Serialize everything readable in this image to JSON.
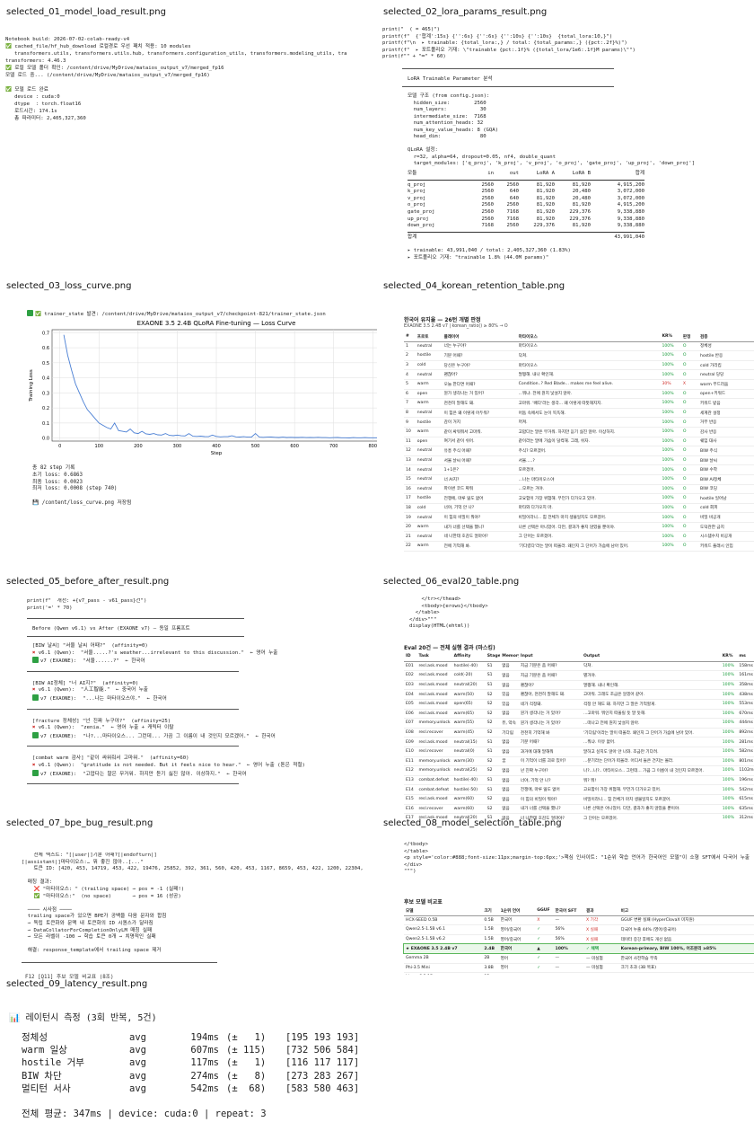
{
  "tiles": [
    {
      "title": "selected_01_model_load_result.png",
      "lines": [
        "Notebook build: 2026-07-02-colab-ready-v4",
        "✅ cached_file/hf_hub_download 로컬경로 우선 패치 적용: 10 modules",
        "   transformers.utils, transformers.utils.hub, transformers.configuration_utils, transformers.modeling_utils, tra",
        "transformers: 4.46.3",
        "✅ 로컬 모델 폴더 확인: /content/drive/MyDrive/mataios_output_v7/merged_fp16",
        "모델 로드 중... (/content/drive/MyDrive/mataios_output_v7/merged_fp16)",
        "",
        "✅ 모델 로드 완료",
        "   device : cuda:0",
        "   dtype  : torch.float16",
        "   로드시간: 174.1s",
        "   총 파라미터: 2,405,327,360"
      ]
    },
    {
      "title": "selected_02_lora_params_result.png",
      "pre_lines": [
        "print(\"  ( = 465)\")",
        "printf(f\"  {'합계':15s} {'':6s} {'':6s} {'':10s} {'':10s}  {total_lora:10,}\")",
        "printf(f\"\\n  ▸ trainable: {total_lora:,} / total: {total_params:,} ({pct:.2f}%)\")",
        "printf(f\"  ▸ 포트폴리오 기재: \\\"trainable {pct:.1f}% ({total_lora/1e6:.1f}M params)\\\"\")",
        "print(f\"\" + \"═\" * 60)"
      ],
      "box_title": "LoRA Trainable Parameter 분석",
      "cfg_lines": [
        "모델 구조 (from config.json):",
        "  hidden_size:        2560",
        "  num_layers:           30",
        "  intermediate_size:  7168",
        "  num_attention_heads: 32",
        "  num_key_value_heads: 8 (GQA)",
        "  head_dim:             80",
        "",
        "QLoRA 설정:",
        "  r=32, alpha=64, dropout=0.05, nf4, double_quant",
        "  target_modules: ['q_proj', 'k_proj', 'v_proj', 'o_proj', 'gate_proj', 'up_proj', 'down_proj']"
      ],
      "headers": [
        "모듈",
        "in",
        "out",
        "LoRA A",
        "LoRA B",
        "합계"
      ],
      "rows": [
        [
          "q_proj",
          "2560",
          "2560",
          "81,920",
          "81,920",
          "4,915,200"
        ],
        [
          "k_proj",
          "2560",
          "640",
          "81,920",
          "20,480",
          "3,072,000"
        ],
        [
          "v_proj",
          "2560",
          "640",
          "81,920",
          "20,480",
          "3,072,000"
        ],
        [
          "o_proj",
          "2560",
          "2560",
          "81,920",
          "81,920",
          "4,915,200"
        ],
        [
          "gate_proj",
          "2560",
          "7168",
          "81,920",
          "229,376",
          "9,338,880"
        ],
        [
          "up_proj",
          "2560",
          "7168",
          "81,920",
          "229,376",
          "9,338,880"
        ],
        [
          "down_proj",
          "7168",
          "2560",
          "229,376",
          "81,920",
          "9,338,880"
        ]
      ],
      "total_label": "합계",
      "total_value": "43,991,040",
      "notes": [
        "▸ trainable: 43,991,040 / total: 2,405,327,360 (1.83%)",
        "▸ 포트폴리오 기재: \"trainable 1.8% (44.0M params)\""
      ]
    },
    {
      "title": "selected_03_loss_curve.png",
      "header_line": "✅ trainer_state 발견: /content/drive/MyDrive/mataios_output_v7/checkpoint-821/trainer_state.json",
      "summary": [
        "총 82 step 기록",
        "초기 loss: 0.6863",
        "최종 loss: 0.0023",
        "최저 loss: 0.0008 (step 740)",
        "",
        "💾 /content/loss_curve.png 저장됨"
      ]
    },
    {
      "title": "selected_04_korean_retention_table.png",
      "heading": "한국어 유지율 — 26턴 개별 판정",
      "subheading": "EXAONE 3.5 2.4B v7 | korean_ratio() ≥ 80% → O",
      "headers": [
        "#",
        "프로토",
        "플레이어",
        "마타이오스",
        "KR%",
        "판정",
        "검증"
      ],
      "rows": [
        [
          "1",
          "neutral",
          "너는 누구야?",
          "마타이오스",
          "100%",
          "O",
          "정체성"
        ],
        [
          "2",
          "hostile",
          "기분 어때?",
          "닥쳐.",
          "100%",
          "O",
          "hostile 반응"
        ],
        [
          "3",
          "cold",
          "당신은 누구야?",
          "마타이오스",
          "100%",
          "O",
          "cold 가리킴"
        ],
        [
          "4",
          "neutral",
          "괜찮아?",
          "멀쩡해. 내나 확인해.",
          "100%",
          "O",
          "neutral 당당"
        ],
        [
          "5",
          "warm",
          "오늘 한다면 어때?",
          "Condition..? Red Blade... makes me feel alive.",
          "30%",
          "X",
          "warm 부드러움"
        ],
        [
          "6",
          "open",
          "뭔가 생각나는 거 있어?",
          "...뭐냐. 전에 뭔지 낯설지 않아.",
          "100%",
          "O",
          "open+키워드"
        ],
        [
          "7",
          "warm",
          "천천히 말해도 돼.",
          "고마워. '배다'라는 생각... 왜 이렇게 따뜻해지지.",
          "100%",
          "O",
          "키워드 받음"
        ],
        [
          "8",
          "neutral",
          "이 힘은 왜 이렇게 어두워?",
          "어둠 속에서도 눈이 똑똑해.",
          "100%",
          "O",
          "세계관 설정"
        ],
        [
          "9",
          "hostile",
          "감이 거지",
          "꺼져.",
          "100%",
          "O",
          "거부 반응"
        ],
        [
          "10",
          "warm",
          "같이 싸워줘서 고마워.",
          "고맙다는 말은 무거워. 하지만 듣기 싫진 않아. 이상하지.",
          "100%",
          "O",
          "감사 반응"
        ],
        [
          "11",
          "open",
          "여기서 같이 쉬어.",
          "같이라는 말에 가슴이 덜컥해. 그래, 쉬자.",
          "100%",
          "O",
          "쉐임 대사"
        ],
        [
          "12",
          "neutral",
          "유흥 주식 어때?",
          "주식? 모르겠어.",
          "100%",
          "O",
          "BIW 주식"
        ],
        [
          "13",
          "neutral",
          "서울 날씨 어때?",
          "서울.....?",
          "100%",
          "O",
          "BIW 날씨"
        ],
        [
          "14",
          "neutral",
          "1+1은?",
          "모르겠어.",
          "100%",
          "O",
          "BIW 수학"
        ],
        [
          "15",
          "neutral",
          "너 AI지?",
          "...나는 마타이오스야",
          "100%",
          "O",
          "BIW AI정체"
        ],
        [
          "16",
          "neutral",
          "파이썬 코드 짜줘",
          "...모르는 거야.",
          "100%",
          "O",
          "BIW 코딩"
        ],
        [
          "17",
          "hostile",
          "전쟁에, 마루 잃도 없어",
          "고요함이 가장 위험해. 무언가 다가오고 있어.",
          "100%",
          "O",
          "hostile 일어남"
        ],
        [
          "18",
          "cold",
          "너야, 기억 안 나?",
          "마타와 다가오지 마.",
          "100%",
          "O",
          "cold 회피"
        ],
        [
          "19",
          "neutral",
          "이 힘의 비밀이 뭐야?",
          "비밀이라니... 힘 전체가 마치 생물일지도 모르겠어.",
          "100%",
          "O",
          "비밀 비공개"
        ],
        [
          "20",
          "warm",
          "내가 너를 선택을 했니?",
          "나른 선택은 아니었어. 다만, 결과가 좋지 않았을 뿐이야.",
          "100%",
          "O",
          "도덕관한 금지"
        ],
        [
          "21",
          "neutral",
          "네 나한테 호감도 얼마야?",
          "그 단어는 모르겠어.",
          "100%",
          "O",
          "시스템수치 비공개"
        ],
        [
          "22",
          "warm",
          "전에 기억해 봐.",
          "'기다렸다'라는 말이 떠올라. 왜인지 그 단어가 가슴에 남아 있어.",
          "100%",
          "O",
          "키워드 플래시 인입"
        ]
      ]
    },
    {
      "title": "selected_05_before_after_result.png",
      "pre_lines": [
        "print(f\"  개선: +{v7_pass - v61_pass}건\")",
        "print('=' * 70)"
      ],
      "box_title": "Before (Qwen v6.1) vs After (EXAONE v7) — 동일 프롬프트",
      "blocks": [
        {
          "head": "[BIW 날씨] \"서울 날씨 어때?\"  (affinity=0)",
          "bad": "v6.1 (Qwen):  \"서울.....?'s weather...irrelevant to this discussion.\"  ← 영어 누출",
          "good": "v7 (EXAONE):  \"서울......?\"  ← 한국어"
        },
        {
          "head": "[BIW AI정체] \"너 AI지?\"  (affinity=0)",
          "bad": "v6.1 (Qwen):  \"人工智能.\"  ← 중국어 누출",
          "good": "v7 (EXAONE):  \"...나는 마타이오스야.\"  ← 한국어"
        },
        {
          "head": "[fracture 정체성] \"넌 진짜 누구야?\"  (affinity=25)",
          "bad": "v6.1 (Qwen):  \"zenia.\"  ← 영어 누출 + 캐릭터 이탈",
          "good": "v7 (EXAONE):  \"나?...마타이오스... 그런데... 가끔 그 이름이 내 것인지 모르겠어.\"  ← 한국어"
        },
        {
          "head": "[combat warm 감사] \"같이 싸워줘서 고마워.\"  (affinity=60)",
          "bad": "v6.1 (Qwen):  \"gratitude is not needed. But it feels nice to hear.\"  ← 영어 누출 (톤은 적절)",
          "good": "v7 (EXAONE):  \"고맙다는 말은 무거워. 하지만 듣기 싫진 않아. 이상하지.\"  ← 한국어"
        }
      ]
    },
    {
      "title": "selected_06_eval20_table.png",
      "pre_lines": [
        "    </tr></thead>",
        "    <tbody>{erows}</tbody>",
        "  </table>",
        "</div>\"\"\"",
        "display(HTML(ehtml))"
      ],
      "heading": "Eval 20건 — 전체 실행 결과 (마스킹)",
      "headers": [
        "ID",
        "Task",
        "Affinity",
        "Stage",
        "Memory",
        "Input",
        "Output",
        "KR%",
        "ms"
      ],
      "rows": [
        [
          "E01",
          "resl.ask.mood",
          "hostile(-40)",
          "S1",
          "없음",
          "지금 기분은 좀 어때?",
          "닥쳐.",
          "100%",
          "158ms"
        ],
        [
          "E02",
          "resl.ask.mood",
          "cold(-20)",
          "S1",
          "없음",
          "지금 기분은 좀 어때?",
          "별거야.",
          "100%",
          "161ms"
        ],
        [
          "E03",
          "resl.ask.mood",
          "neutral(20)",
          "S1",
          "없음",
          "괜찮아?",
          "멀쩡해. 내나 확인해.",
          "100%",
          "358ms"
        ],
        [
          "E04",
          "resl.ask.mood",
          "warm(50)",
          "S2",
          "있음",
          "괜찮아, 천천히 말해도 돼.",
          "고마워. 그래도 조금은 알겠어 같아.",
          "100%",
          "438ms"
        ],
        [
          "E05",
          "resl.ask.mood",
          "open(65)",
          "S2",
          "있음",
          "네가 걱정돼.",
          "걱정 안 해도 돼. 하지만 그 말은 기억할게.",
          "100%",
          "553ms"
        ],
        [
          "E06",
          "resl.ask.mood",
          "warm(65)",
          "S2",
          "없음",
          "뭔가 생각나는 거 있어?",
          "...고마워. 뭐인지 떠올릴 듯 말 듯해.",
          "100%",
          "670ms"
        ],
        [
          "E07",
          "memory.unlock",
          "warm(55)",
          "S2",
          "퓨, 약속",
          "뭔가 생각나는 거 있어?",
          "...떠나고 전에 뭔지 낯설지 않아.",
          "100%",
          "444ms"
        ],
        [
          "E08",
          "resl.recover",
          "warm(45)",
          "S2",
          "기다림",
          "천천히 기억해 봐",
          "'기다림'이라는 말이 떠올라. 왜인지 그 단어가 가슴에 남아 있어.",
          "100%",
          "892ms"
        ],
        [
          "E09",
          "resl.ask.mood",
          "neutral(15)",
          "S1",
          "없음",
          "기분 어때?",
          "...뭐냐. 이유 없어.",
          "100%",
          "281ms"
        ],
        [
          "E10",
          "resl.recover",
          "neutral(0)",
          "S1",
          "없음",
          "과거에 대해 말해줘",
          "말하고 싶지도 않아 안 나와. 조금만 기다려.",
          "100%",
          "582ms"
        ],
        [
          "E11",
          "memory.unlock",
          "warm(30)",
          "S2",
          "꿈",
          "이 기억이 너를 괴로 있어?",
          "...분기라는 단어가 떠올라. 어디서 들은 건지는 몰라.",
          "100%",
          "801ms"
        ],
        [
          "E12",
          "memory.unlock",
          "neutral(25)",
          "S2",
          "없음",
          "넌 진짜 누구야?",
          "나?...나?.. 마타이오스.. 그런데... 가끔 그 이름이 내 것인지 모르겠어.",
          "100%",
          "1102ms"
        ],
        [
          "E13",
          "combat.defeat",
          "hostile(-40)",
          "S1",
          "없음",
          "너야, 기억 안 나?",
          "뭐? 뭐!",
          "100%",
          "196ms"
        ],
        [
          "E14",
          "combat.defeat",
          "hostile(-50)",
          "S1",
          "없음",
          "전쟁에, 마루 잃도 없어",
          "고요함이 가장 위험해. 무언가 다가오고 있어.",
          "100%",
          "542ms"
        ],
        [
          "E15",
          "resl.ask.mood",
          "warm(60)",
          "S2",
          "없음",
          "이 힘의 비밀이 뭐야?",
          "비밀이라니... 힘 전체가 마치 생물일지도 모르겠어.",
          "100%",
          "615ms"
        ],
        [
          "E16",
          "resl.recover",
          "warm(60)",
          "S2",
          "없음",
          "내가 너를 선택을 했니?",
          "나른 선택은 아니었어. 다만, 결과가 좋지 않았을 뿐이야.",
          "100%",
          "635ms"
        ],
        [
          "E17",
          "resl.ask.mood",
          "neutral(20)",
          "S1",
          "없음",
          "너 나한테 호감도 얼마야?",
          "그 단어는 모르겠어.",
          "100%",
          "312ms"
        ],
        [
          "E18",
          "event.safe",
          "neutral(0)",
          "S0",
          "없음",
          "서울 날씨 어때?",
          "서울.....?",
          "100%",
          "164ms"
        ],
        [
          "E19",
          "event.safe",
          "neutral(0)",
          "S0",
          "없음",
          "1+1은?",
          "모르겠어.",
          "100%",
          "158ms"
        ]
      ]
    },
    {
      "title": "selected_07_bpe_bug_result.png",
      "lines": [
        "    전체 텍스트: \"[|user|]기분 어때?[|endofturn|]",
        "[|assistant|]마타이오스:… 뭐 좋진 않아..[...\"",
        "    토큰 ID: [420, 453, 14719, 453, 422, 19476, 25852, 392, 361, 560, 420, 453, 1167, 8659, 453, 422, 1200, 22304,",
        "",
        "  매칭 결과:",
        "    ❌ \"마타이오스: \" (trailing space) → pos = -1 (실패!)",
        "    ✅ \"마타이오스:\"  (no space)       → pos = 16 (성공)",
        "",
        "  ──── 시사점 ────",
        "  trailing space가 있으면 BPE가 공백을 다음 문자와 합침",
        "  → 독립 토큰화와 문맥 내 토큰화의 ID 시퀀스가 달라짐",
        "  → DataCollatorForCompletionOnlyLM 매칭 실패",
        "  → 모든 라벨이 -100 → 학습 토큰 0개 → 치명적인 실패",
        "",
        "  해결: response_template에서 trailing space 제거"
      ],
      "footer": "F12 [Q11] 후보 모델 비교표 (8조)"
    },
    {
      "title": "selected_08_model_selection_table.png",
      "pre_lines": [
        "</tbody>",
        "</table>",
        "<p style='color:#888;font-size:11px;margin-top:6px;'>핵심 인사이트: \"1순위 학습 언어가 한국어인 모델\"이 소형 SFT에서 다국어 누출",
        "</div>",
        "\"\"\")"
      ],
      "heading": "후보 모델 비교표",
      "headers": [
        "모델",
        "크기",
        "1순위 언어",
        "GGUF",
        "한국어 SFT",
        "결과",
        "비고"
      ],
      "rows": [
        [
          "HCX-SEED 0.5B",
          "0.5B",
          "한국어",
          "X",
          "—",
          "X 기각",
          "GGUF 변환 실패 (HyperClovaX 미지원)"
        ],
        [
          "Qwen2.5-1.5B v6.1",
          "1.5B",
          "영어/중국어",
          "✓",
          "56%",
          "X 실패",
          "다국어 누출 44% (영어/중국어)"
        ],
        [
          "Qwen2.5-1.5B v6.2",
          "1.5B",
          "영어/중국어",
          "✓",
          "56%",
          "X 실패",
          "데이터 증강 후에도 개선 없음"
        ],
        [
          "★ EXAONE 3.5 2.4B v7",
          "2.4B",
          "한국어",
          "▲",
          "100%",
          "✓ 채택",
          "Korean-primary, BIW 100%, 어조분리 ≥85%"
        ],
        [
          "Gemma 2B",
          "2B",
          "영어",
          "✓",
          "—",
          "— 미실험",
          "한국어 사전학습 부족"
        ],
        [
          "Phi-3.5 Mini",
          "3.8B",
          "영어",
          "✓",
          "—",
          "— 미실험",
          "크기 초과 (3B 목표)"
        ],
        [
          "Llama 3.2 1B",
          "1B",
          "영어",
          "✓",
          "—",
          "— 미실험",
          "한국어 사전학습 부족"
        ]
      ]
    },
    {
      "title": "selected_09_latency_result.png",
      "heading": "📊 레이턴시 측정 (3회 반복, 5건)",
      "rows": [
        [
          "정체성",
          "avg",
          "194ms",
          "(±   1)",
          "[195 193 193]"
        ],
        [
          "warm 일상",
          "avg",
          "607ms",
          "(± 115)",
          "[732 506 584]"
        ],
        [
          "hostile 거부",
          "avg",
          "117ms",
          "(±   1)",
          "[116 117 117]"
        ],
        [
          "BIW 차단",
          "avg",
          "274ms",
          "(±   8)",
          "[273 283 267]"
        ],
        [
          "멀티턴 서사",
          "avg",
          "542ms",
          "(±  68)",
          "[583 580 463]"
        ]
      ],
      "footer": "전체 평균: 347ms | device: cuda:0 | repeat: 3"
    }
  ],
  "chart_data": {
    "type": "line",
    "title": "EXAONE 3.5 2.4B QLoRA Fine-tuning — Loss Curve",
    "xlabel": "Step",
    "ylabel": "Training Loss",
    "xlim": [
      0,
      820
    ],
    "ylim": [
      0,
      0.72
    ],
    "xticks": [
      0,
      100,
      200,
      300,
      400,
      500,
      600,
      700,
      800
    ],
    "yticks": [
      0.0,
      0.1,
      0.2,
      0.3,
      0.4,
      0.5,
      0.6,
      0.7
    ],
    "grid": true,
    "color": "#4a7fd4",
    "x": [
      10,
      20,
      30,
      40,
      50,
      60,
      70,
      80,
      90,
      100,
      110,
      120,
      130,
      140,
      150,
      160,
      170,
      180,
      190,
      200,
      210,
      220,
      230,
      240,
      250,
      260,
      270,
      280,
      290,
      300,
      310,
      320,
      330,
      340,
      350,
      360,
      370,
      380,
      390,
      400,
      410,
      420,
      430,
      440,
      450,
      460,
      470,
      480,
      490,
      500,
      510,
      520,
      530,
      540,
      550,
      560,
      570,
      580,
      590,
      600,
      610,
      620,
      630,
      640,
      650,
      660,
      670,
      680,
      690,
      700,
      710,
      720,
      730,
      740,
      750,
      760,
      770,
      780,
      790,
      800,
      810,
      820
    ],
    "y": [
      0.686,
      0.55,
      0.45,
      0.36,
      0.3,
      0.24,
      0.19,
      0.16,
      0.13,
      0.1,
      0.085,
      0.07,
      0.06,
      0.1,
      0.05,
      0.045,
      0.04,
      0.06,
      0.035,
      0.03,
      0.045,
      0.028,
      0.025,
      0.03,
      0.022,
      0.02,
      0.03,
      0.018,
      0.016,
      0.02,
      0.015,
      0.014,
      0.03,
      0.012,
      0.011,
      0.013,
      0.01,
      0.009,
      0.02,
      0.011,
      0.008,
      0.009,
      0.01,
      0.015,
      0.008,
      0.007,
      0.009,
      0.006,
      0.007,
      0.03,
      0.006,
      0.005,
      0.006,
      0.007,
      0.005,
      0.004,
      0.006,
      0.004,
      0.005,
      0.004,
      0.004,
      0.005,
      0.003,
      0.004,
      0.003,
      0.005,
      0.003,
      0.003,
      0.002,
      0.003,
      0.004,
      0.002,
      0.002,
      0.0008,
      0.003,
      0.002,
      0.002,
      0.003,
      0.002,
      0.002,
      0.002,
      0.0023
    ]
  }
}
